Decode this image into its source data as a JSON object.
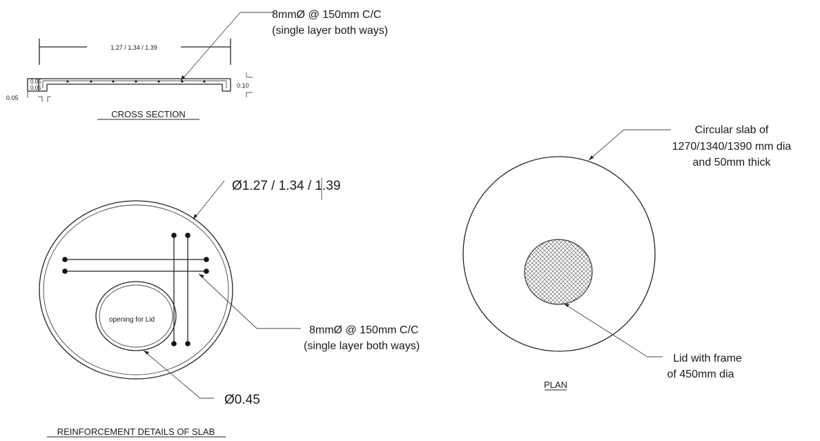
{
  "cross_section": {
    "callout_line1": "8mmØ @ 150mm  C/C",
    "callout_line2": "(single layer both ways)",
    "span_dim": "1.27 / 1.34 / 1.39",
    "dim_left_a": "0.05",
    "dim_left_b": "0.05",
    "dim_bottom": "0.05",
    "dim_thickness": "0.10",
    "title": "CROSS SECTION"
  },
  "reinforcement": {
    "diameter_label": "Ø1.27 / 1.34 / 1.39",
    "opening_label": "opening for Lid",
    "bar_line1": "8mmØ @ 150mm  C/C",
    "bar_line2": "(single layer both ways)",
    "opening_dia": "Ø0.45",
    "title": "REINFORCEMENT DETAILS OF SLAB"
  },
  "plan": {
    "slab_line1": "Circular slab of",
    "slab_line2": "1270/1340/1390 mm dia",
    "slab_line3": "and 50mm thick",
    "lid_line1": "Lid with frame",
    "lid_line2": "of 450mm dia",
    "title": "PLAN"
  },
  "colors": {
    "ink": "#222222",
    "background": "#ffffff"
  }
}
